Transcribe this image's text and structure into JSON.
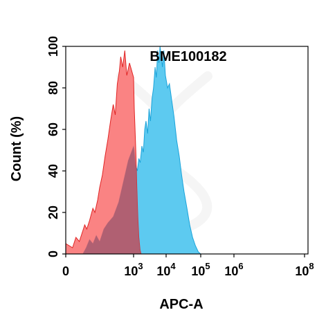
{
  "chart_data": {
    "type": "area",
    "title": "BME100182",
    "xlabel": "APC-A",
    "ylabel": "Count (%)",
    "x_scale": "biexponential",
    "xlim": [
      -100,
      100000000
    ],
    "ylim": [
      0,
      100
    ],
    "y_ticks": [
      0,
      20,
      40,
      60,
      80,
      100
    ],
    "x_ticks": [
      {
        "value": 0,
        "label": "0"
      },
      {
        "value": 1000,
        "base": "10",
        "exp": "3"
      },
      {
        "value": 10000,
        "base": "10",
        "exp": "4"
      },
      {
        "value": 100000,
        "base": "10",
        "exp": "5"
      },
      {
        "value": 1000000,
        "base": "10",
        "exp": "6"
      },
      {
        "value": 100000000,
        "base": "10",
        "exp": "8"
      }
    ],
    "grid": false,
    "legend": false,
    "colors": {
      "control_fill": "#fa7878",
      "control_stroke": "#e02525",
      "sample_fill": "#5dcaf0",
      "sample_stroke": "#1aa3da",
      "overlap_fill": "#a55a70"
    },
    "series": [
      {
        "role": "control",
        "points": [
          [
            -100,
            8
          ],
          [
            0,
            5
          ],
          [
            100,
            3
          ],
          [
            150,
            8
          ],
          [
            200,
            6
          ],
          [
            250,
            11
          ],
          [
            280,
            14
          ],
          [
            310,
            12
          ],
          [
            350,
            16
          ],
          [
            400,
            22
          ],
          [
            430,
            20
          ],
          [
            470,
            26
          ],
          [
            500,
            32
          ],
          [
            540,
            38
          ],
          [
            580,
            47
          ],
          [
            620,
            55
          ],
          [
            660,
            64
          ],
          [
            700,
            72
          ],
          [
            730,
            67
          ],
          [
            760,
            82
          ],
          [
            790,
            88
          ],
          [
            810,
            95
          ],
          [
            840,
            90
          ],
          [
            870,
            98
          ],
          [
            900,
            86
          ],
          [
            940,
            92
          ],
          [
            1000,
            85
          ],
          [
            1050,
            70
          ],
          [
            1100,
            62
          ],
          [
            1180,
            48
          ],
          [
            1260,
            32
          ],
          [
            1350,
            18
          ],
          [
            1450,
            8
          ],
          [
            1580,
            2
          ],
          [
            1700,
            0
          ]
        ]
      },
      {
        "role": "sample",
        "points": [
          [
            250,
            0
          ],
          [
            300,
            3
          ],
          [
            350,
            7
          ],
          [
            400,
            5
          ],
          [
            450,
            9
          ],
          [
            500,
            6
          ],
          [
            560,
            12
          ],
          [
            620,
            15
          ],
          [
            700,
            18
          ],
          [
            780,
            25
          ],
          [
            850,
            35
          ],
          [
            920,
            45
          ],
          [
            1000,
            52
          ],
          [
            1050,
            50
          ],
          [
            1150,
            43
          ],
          [
            1300,
            40
          ],
          [
            1450,
            46
          ],
          [
            1600,
            44
          ],
          [
            1800,
            52
          ],
          [
            2000,
            49
          ],
          [
            2200,
            60
          ],
          [
            2400,
            64
          ],
          [
            2700,
            58
          ],
          [
            3000,
            70
          ],
          [
            3300,
            64
          ],
          [
            3700,
            75
          ],
          [
            4100,
            80
          ],
          [
            4600,
            90
          ],
          [
            5000,
            85
          ],
          [
            5500,
            98
          ],
          [
            6000,
            92
          ],
          [
            6500,
            100
          ],
          [
            7000,
            96
          ],
          [
            7700,
            90
          ],
          [
            8500,
            98
          ],
          [
            9500,
            86
          ],
          [
            11000,
            80
          ],
          [
            12500,
            82
          ],
          [
            14500,
            74
          ],
          [
            17000,
            66
          ],
          [
            20000,
            55
          ],
          [
            24000,
            47
          ],
          [
            28000,
            38
          ],
          [
            33000,
            30
          ],
          [
            40000,
            22
          ],
          [
            48000,
            14
          ],
          [
            58000,
            8
          ],
          [
            70000,
            4
          ],
          [
            85000,
            1
          ],
          [
            100000,
            0
          ]
        ]
      }
    ]
  }
}
